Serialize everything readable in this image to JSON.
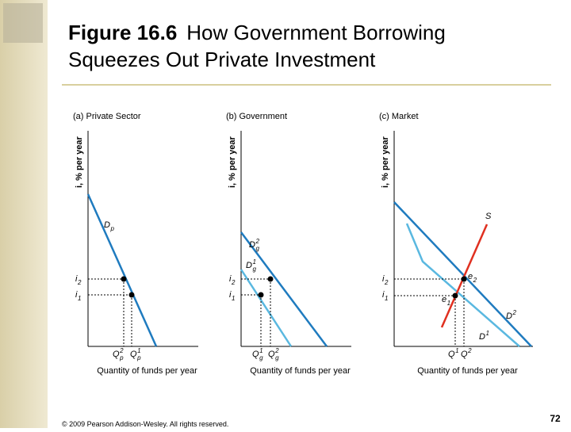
{
  "header": {
    "figure": "Figure 16.6",
    "title_line1": "How Government Borrowing",
    "title_line2": "Squeezes Out Private Investment"
  },
  "panels": [
    {
      "title": "(a) Private Sector",
      "y_axis_label": "i, % per year",
      "x_axis_label": "Quantity of funds per year",
      "labels": {
        "demand": {
          "text": "D",
          "sub": "p"
        },
        "i2": {
          "text": "i",
          "sub": "2"
        },
        "i1": {
          "text": "i",
          "sub": "1"
        },
        "q2": {
          "text": "Q",
          "sup": "2",
          "sub": "p"
        },
        "q1": {
          "text": "Q",
          "sup": "1",
          "sub": "p"
        }
      }
    },
    {
      "title": "(b) Government",
      "y_axis_label": "i, % per year",
      "x_axis_label": "Quantity of funds per year",
      "labels": {
        "demand2": {
          "text": "D",
          "sup": "2",
          "sub": "g"
        },
        "demand1": {
          "text": "D",
          "sup": "1",
          "sub": "g"
        },
        "i2": {
          "text": "i",
          "sub": "2"
        },
        "i1": {
          "text": "i",
          "sub": "1"
        },
        "q1": {
          "text": "Q",
          "sup": "1",
          "sub": "g"
        },
        "q2": {
          "text": "Q",
          "sup": "2",
          "sub": "g"
        }
      }
    },
    {
      "title": "(c) Market",
      "y_axis_label": "i, % per year",
      "x_axis_label": "Quantity of funds per year",
      "labels": {
        "supply": {
          "text": "S"
        },
        "e2": {
          "text": "e",
          "sub": "2"
        },
        "e1": {
          "text": "e",
          "sub": "1"
        },
        "i2": {
          "text": "i",
          "sub": "2"
        },
        "i1": {
          "text": "i",
          "sub": "1"
        },
        "demand2": {
          "text": "D",
          "sup": "2"
        },
        "demand1": {
          "text": "D",
          "sup": "1"
        },
        "q1": {
          "text": "Q",
          "sup": "1"
        },
        "q2": {
          "text": "Q",
          "sup": "2"
        }
      }
    }
  ],
  "footer": {
    "copyright": "© 2009 Pearson Addison-Wesley. All rights reserved.",
    "page_number": "72"
  }
}
